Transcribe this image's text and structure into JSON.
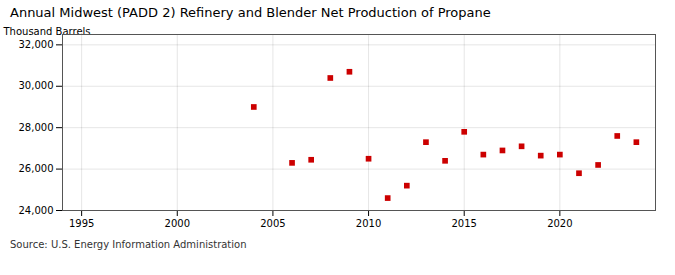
{
  "chart_data": {
    "type": "scatter",
    "title": "Annual Midwest (PADD 2) Refinery and Blender Net Production of Propane",
    "ylabel": "Thousand Barrels",
    "source": "Source: U.S. Energy Information Administration",
    "color": "#cc0000",
    "marker": "square",
    "x": [
      2004,
      2006,
      2007,
      2008,
      2009,
      2010,
      2011,
      2012,
      2013,
      2014,
      2015,
      2016,
      2017,
      2018,
      2019,
      2020,
      2021,
      2022,
      2023,
      2024
    ],
    "values": [
      29000,
      26300,
      26450,
      30400,
      30700,
      26500,
      24600,
      25200,
      27300,
      26400,
      27800,
      26700,
      26900,
      27100,
      26650,
      26700,
      25800,
      26200,
      27600,
      27300
    ],
    "xlim": [
      1994,
      2025
    ],
    "ylim": [
      24000,
      32500
    ],
    "xticks": [
      1995,
      2000,
      2005,
      2010,
      2015,
      2020
    ],
    "yticks": [
      {
        "value": 24000,
        "label": "24,000"
      },
      {
        "value": 26000,
        "label": "26,000"
      },
      {
        "value": 28000,
        "label": "28,000"
      },
      {
        "value": 30000,
        "label": "30,000"
      },
      {
        "value": 32000,
        "label": "32,000"
      }
    ],
    "grid": true
  }
}
